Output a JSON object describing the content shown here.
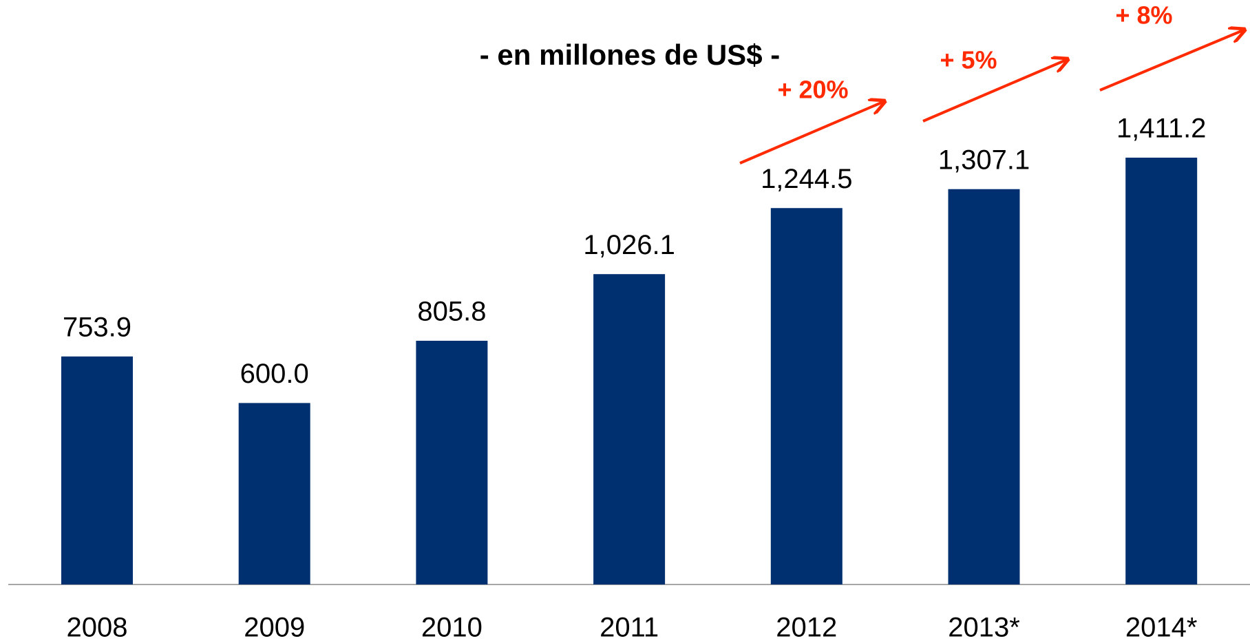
{
  "chart_data": {
    "type": "bar",
    "title": "- en millones de US$ -",
    "categories": [
      "2008",
      "2009",
      "2010",
      "2011",
      "2012",
      "2013*",
      "2014*"
    ],
    "values": [
      753.9,
      600.0,
      805.8,
      1026.1,
      1244.5,
      1307.1,
      1411.2
    ],
    "value_labels": [
      "753.9",
      "600.0",
      "805.8",
      "1,026.1",
      "1,244.5",
      "1,307.1",
      "1,411.2"
    ],
    "color": "#003070",
    "annotations": [
      "+ 20%",
      "+ 5%",
      "+ 8%"
    ],
    "annotation_color": "#ff2a00",
    "grid": false
  }
}
